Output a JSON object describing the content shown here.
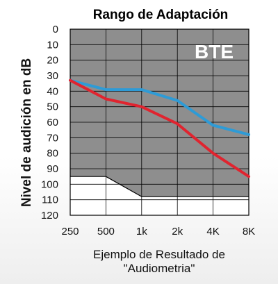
{
  "chart_data": {
    "type": "line",
    "title": "Rango de Adaptación",
    "ylabel": "Nivel de audición en dB",
    "caption_line1": "Ejemplo de Resultado de",
    "caption_line2": "\"Audiometria\"",
    "badge": "BTE",
    "ylim": [
      0,
      120
    ],
    "y_inverted": true,
    "grid": true,
    "y_ticks": [
      "0",
      "10",
      "20",
      "30",
      "40",
      "50",
      "60",
      "70",
      "80",
      "90",
      "100",
      "110",
      "120"
    ],
    "x": [
      "250",
      "500",
      "1k",
      "2k",
      "4K",
      "8K"
    ],
    "series": [
      {
        "color": "#2E9BD6",
        "values": [
          33,
          39,
          39,
          46,
          62,
          68
        ]
      },
      {
        "color": "#E0242F",
        "values": [
          33,
          45,
          50,
          61,
          80,
          95
        ]
      }
    ],
    "fitting_range": {
      "color": "#8E8E8E",
      "description_points": [
        {
          "x": "250",
          "y": 95
        },
        {
          "x": "500",
          "y": 95
        },
        {
          "x": "1k",
          "y": 108
        },
        {
          "x": "8K",
          "y": 108
        }
      ]
    }
  }
}
